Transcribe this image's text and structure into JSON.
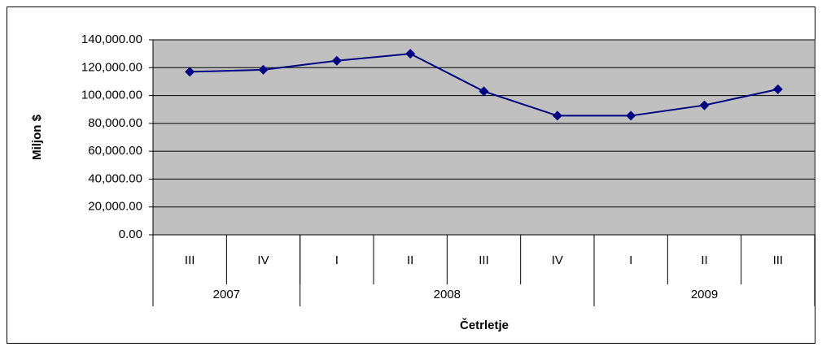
{
  "chart_data": {
    "type": "line",
    "y_label": "Miljon $",
    "x_label": "Četrletje",
    "categories": [
      "III",
      "IV",
      "I",
      "II",
      "III",
      "IV",
      "I",
      "II",
      "III"
    ],
    "groups": [
      {
        "name": "2007",
        "count": 2
      },
      {
        "name": "2008",
        "count": 4
      },
      {
        "name": "2009",
        "count": 3
      }
    ],
    "series": [
      {
        "color": "#000080",
        "values": [
          117000,
          118500,
          125000,
          130000,
          103000,
          85500,
          85500,
          93000,
          104500
        ]
      }
    ],
    "ylim": [
      0,
      140000
    ],
    "yticks": [
      {
        "value": 0,
        "label": "0.00"
      },
      {
        "value": 20000,
        "label": "20,000.00"
      },
      {
        "value": 40000,
        "label": "40,000.00"
      },
      {
        "value": 60000,
        "label": "60,000.00"
      },
      {
        "value": 80000,
        "label": "80,000.00"
      },
      {
        "value": 100000,
        "label": "100,000.00"
      },
      {
        "value": 120000,
        "label": "120,000.00"
      },
      {
        "value": 140000,
        "label": "140,000.00"
      }
    ],
    "grid": true,
    "plot_color": "#c0c0c0"
  }
}
